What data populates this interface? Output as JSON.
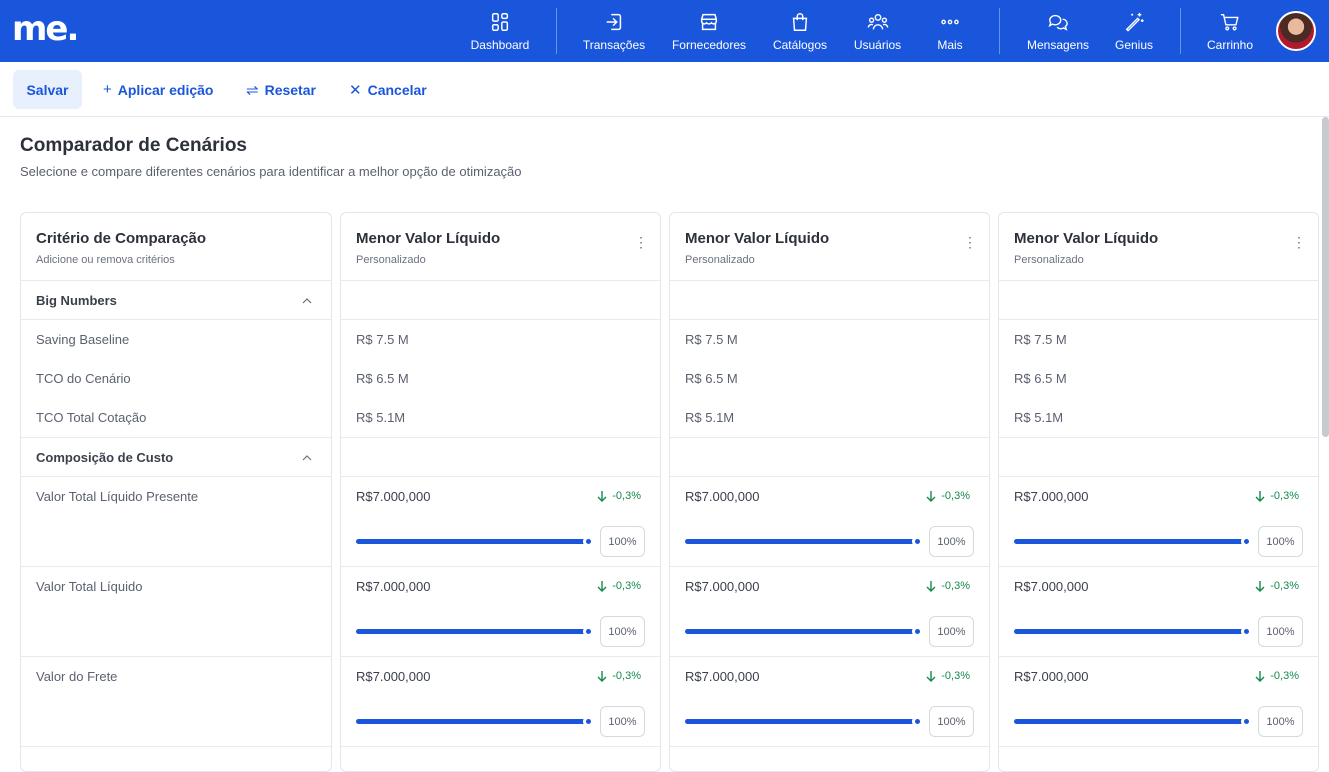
{
  "brand": {
    "logo": "me."
  },
  "nav": {
    "items": [
      {
        "label": "Dashboard",
        "icon": "dashboard-grid-icon"
      },
      {
        "label": "Transações",
        "icon": "login-arrow-icon"
      },
      {
        "label": "Fornecedores",
        "icon": "store-icon"
      },
      {
        "label": "Catálogos",
        "icon": "shopping-bag-icon"
      },
      {
        "label": "Usuários",
        "icon": "users-icon"
      },
      {
        "label": "Mais",
        "icon": "more-dots-icon"
      },
      {
        "label": "Mensagens",
        "icon": "chat-bubbles-icon"
      },
      {
        "label": "Genius",
        "icon": "magic-wand-icon"
      },
      {
        "label": "Carrinho",
        "icon": "cart-icon"
      }
    ]
  },
  "toolbar": {
    "save_label": "Salvar",
    "apply_label": "Aplicar edição",
    "reset_label": "Resetar",
    "cancel_label": "Cancelar"
  },
  "page": {
    "title": "Comparador de Cenários",
    "subtitle": "Selecione e compare diferentes cenários para identificar a melhor opção de otimização"
  },
  "criteria": {
    "title": "Critério de Comparação",
    "subtitle": "Adicione ou remova critérios",
    "sections": [
      {
        "label": "Big Numbers",
        "rows": [
          "Saving Baseline",
          "TCO do Cenário",
          "TCO Total Cotação"
        ]
      },
      {
        "label": "Composição de Custo",
        "rows": [
          "Valor Total Líquido Presente",
          "Valor Total Líquido",
          "Valor do Frete"
        ]
      }
    ]
  },
  "scenarios": [
    {
      "title": "Menor Valor Líquido",
      "subtitle": "Personalizado",
      "big_numbers": [
        "R$ 7.5 M",
        "R$ 6.5 M",
        "R$ 5.1M"
      ],
      "costs": [
        {
          "value": "R$7.000,000",
          "delta": "-0,3%",
          "percent": "100%",
          "level": 1.0
        },
        {
          "value": "R$7.000,000",
          "delta": "-0,3%",
          "percent": "100%",
          "level": 1.0
        },
        {
          "value": "R$7.000,000",
          "delta": "-0,3%",
          "percent": "100%",
          "level": 1.0
        }
      ]
    },
    {
      "title": "Menor Valor Líquido",
      "subtitle": "Personalizado",
      "big_numbers": [
        "R$ 7.5 M",
        "R$ 6.5 M",
        "R$ 5.1M"
      ],
      "costs": [
        {
          "value": "R$7.000,000",
          "delta": "-0,3%",
          "percent": "100%",
          "level": 1.0
        },
        {
          "value": "R$7.000,000",
          "delta": "-0,3%",
          "percent": "100%",
          "level": 1.0
        },
        {
          "value": "R$7.000,000",
          "delta": "-0,3%",
          "percent": "100%",
          "level": 1.0
        }
      ]
    },
    {
      "title": "Menor Valor Líquido",
      "subtitle": "Personalizado",
      "big_numbers": [
        "R$ 7.5 M",
        "R$ 6.5 M",
        "R$ 5.1M"
      ],
      "costs": [
        {
          "value": "R$7.000,000",
          "delta": "-0,3%",
          "percent": "100%",
          "level": 1.0
        },
        {
          "value": "R$7.000,000",
          "delta": "-0,3%",
          "percent": "100%",
          "level": 1.0
        },
        {
          "value": "R$7.000,000",
          "delta": "-0,3%",
          "percent": "100%",
          "level": 1.0
        }
      ]
    }
  ],
  "colors": {
    "brand": "#1a56db",
    "positive_delta": "#148a4c"
  }
}
